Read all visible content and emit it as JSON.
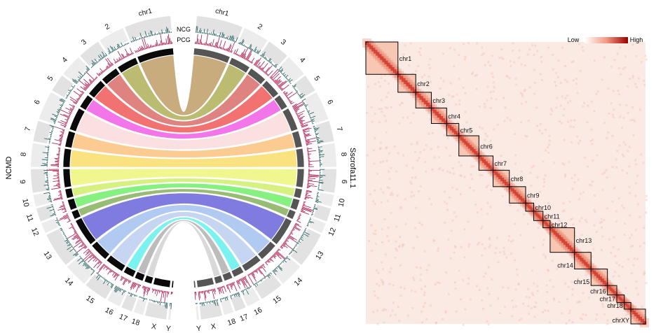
{
  "circos": {
    "left_genome_label": "NCMD",
    "right_genome_label": "Sscrofa11.1",
    "track_labels": [
      "NCG",
      "PCG"
    ],
    "left_chromosomes": [
      "chr1",
      "2",
      "3",
      "4",
      "5",
      "6",
      "7",
      "8",
      "9",
      "10",
      "11",
      "12",
      "13",
      "14",
      "15",
      "16",
      "17",
      "18",
      "X",
      "Y"
    ],
    "right_chromosomes": [
      "chr1",
      "2",
      "3",
      "4",
      "5",
      "6",
      "7",
      "8",
      "9",
      "10",
      "11",
      "12",
      "13",
      "14",
      "15",
      "16",
      "17",
      "18",
      "X",
      "Y"
    ],
    "link_colors": [
      "#c7a877",
      "#b8b86a",
      "#de7d7a",
      "#f26b6b",
      "#f26ee8",
      "#fbdfe0",
      "#fcc98d",
      "#fbe17b",
      "#f0f78a",
      "#d4f17a",
      "#80f07a",
      "#93b86e",
      "#7a76de",
      "#adc8f2",
      "#c4d3f2",
      "#72f2f0",
      "#b9b9b9",
      "#d8d8d8"
    ]
  },
  "heatmap": {
    "legend_low": "Low",
    "legend_high": "High",
    "chromosomes": [
      "chr1",
      "chr2",
      "chr3",
      "chr4",
      "chr5",
      "chr6",
      "chr7",
      "chr8",
      "chr9",
      "chr10",
      "chr11",
      "chr12",
      "chr13",
      "chr14",
      "chr15",
      "chr16",
      "chr17",
      "chr18",
      "chrXY"
    ],
    "sizes": [
      274,
      152,
      133,
      131,
      104,
      171,
      121,
      139,
      139,
      69,
      79,
      61,
      208,
      141,
      140,
      80,
      64,
      56,
      125
    ],
    "colors": {
      "low": "#ffffff",
      "high": "#b30000",
      "background": "#fbeae4"
    }
  }
}
